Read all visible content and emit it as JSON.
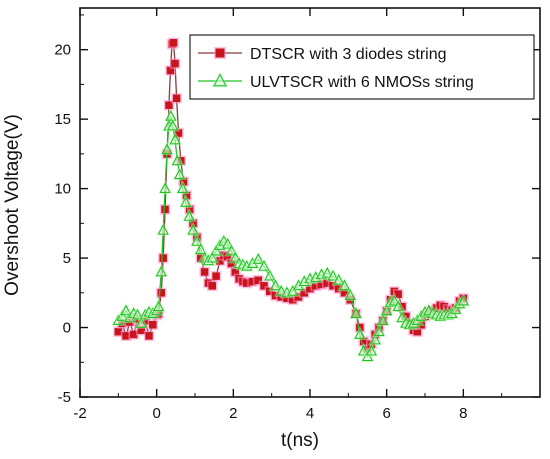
{
  "chart_data": {
    "type": "line",
    "xlabel": "t(ns)",
    "ylabel": "Overshoot Voltage(V)",
    "xlim": [
      -2,
      10
    ],
    "ylim": [
      -5,
      23
    ],
    "xticks": [
      -2,
      0,
      2,
      4,
      6,
      8
    ],
    "yticks": [
      -5,
      0,
      5,
      10,
      15,
      20
    ],
    "grid": false,
    "legend_position": "top-right",
    "series": [
      {
        "name": "DTSCR with 3 diodes string",
        "marker": "square",
        "color": "#c8151b",
        "line_color": "#8b3a3a",
        "glow_color": "#ff8fd0",
        "points": [
          [
            -1.0,
            -0.3
          ],
          [
            -0.9,
            0.3
          ],
          [
            -0.8,
            -0.6
          ],
          [
            -0.7,
            0.4
          ],
          [
            -0.6,
            -0.5
          ],
          [
            -0.5,
            0.6
          ],
          [
            -0.4,
            -0.2
          ],
          [
            -0.3,
            0.5
          ],
          [
            -0.2,
            -0.6
          ],
          [
            -0.1,
            0.2
          ],
          [
            0.0,
            0.9
          ],
          [
            0.05,
            1.0
          ],
          [
            0.12,
            2.5
          ],
          [
            0.17,
            5.0
          ],
          [
            0.22,
            8.5
          ],
          [
            0.27,
            12.5
          ],
          [
            0.32,
            16.0
          ],
          [
            0.36,
            18.5
          ],
          [
            0.4,
            20.4
          ],
          [
            0.44,
            20.5
          ],
          [
            0.48,
            19.0
          ],
          [
            0.52,
            16.5
          ],
          [
            0.57,
            14.0
          ],
          [
            0.63,
            12.0
          ],
          [
            0.7,
            10.5
          ],
          [
            0.78,
            9.5
          ],
          [
            0.86,
            8.5
          ],
          [
            0.95,
            7.5
          ],
          [
            1.05,
            6.5
          ],
          [
            1.15,
            5.0
          ],
          [
            1.25,
            4.0
          ],
          [
            1.35,
            3.2
          ],
          [
            1.45,
            3.0
          ],
          [
            1.55,
            3.7
          ],
          [
            1.65,
            4.8
          ],
          [
            1.75,
            5.2
          ],
          [
            1.85,
            5.1
          ],
          [
            1.95,
            4.6
          ],
          [
            2.05,
            4.0
          ],
          [
            2.15,
            3.5
          ],
          [
            2.25,
            3.3
          ],
          [
            2.35,
            3.2
          ],
          [
            2.5,
            3.3
          ],
          [
            2.65,
            3.4
          ],
          [
            2.8,
            3.0
          ],
          [
            2.95,
            2.6
          ],
          [
            3.1,
            2.3
          ],
          [
            3.25,
            2.2
          ],
          [
            3.4,
            2.1
          ],
          [
            3.55,
            2.0
          ],
          [
            3.7,
            2.2
          ],
          [
            3.85,
            2.5
          ],
          [
            4.0,
            2.8
          ],
          [
            4.15,
            3.0
          ],
          [
            4.3,
            3.1
          ],
          [
            4.45,
            3.2
          ],
          [
            4.6,
            3.0
          ],
          [
            4.75,
            2.8
          ],
          [
            4.9,
            2.5
          ],
          [
            5.05,
            2.0
          ],
          [
            5.2,
            1.0
          ],
          [
            5.3,
            0.0
          ],
          [
            5.4,
            -1.0
          ],
          [
            5.5,
            -1.6
          ],
          [
            5.6,
            -1.2
          ],
          [
            5.7,
            -0.5
          ],
          [
            5.8,
            0.0
          ],
          [
            5.9,
            0.5
          ],
          [
            6.0,
            1.2
          ],
          [
            6.1,
            2.0
          ],
          [
            6.2,
            2.6
          ],
          [
            6.3,
            2.4
          ],
          [
            6.4,
            1.5
          ],
          [
            6.5,
            0.8
          ],
          [
            6.6,
            0.3
          ],
          [
            6.7,
            -0.2
          ],
          [
            6.8,
            -0.3
          ],
          [
            6.9,
            0.2
          ],
          [
            7.0,
            0.8
          ],
          [
            7.1,
            1.0
          ],
          [
            7.2,
            1.2
          ],
          [
            7.3,
            1.4
          ],
          [
            7.4,
            1.6
          ],
          [
            7.5,
            1.5
          ],
          [
            7.6,
            1.3
          ],
          [
            7.7,
            1.2
          ],
          [
            7.8,
            1.4
          ],
          [
            7.9,
            1.9
          ],
          [
            8.0,
            2.1
          ]
        ]
      },
      {
        "name": "ULVTSCR with 6 NMOSs string",
        "marker": "triangle",
        "color": "#22c222",
        "line_color": "#22c222",
        "glow_color": "#c4ffc4",
        "points": [
          [
            -1.0,
            0.5
          ],
          [
            -0.9,
            0.8
          ],
          [
            -0.8,
            1.2
          ],
          [
            -0.7,
            0.7
          ],
          [
            -0.6,
            1.0
          ],
          [
            -0.5,
            0.9
          ],
          [
            -0.4,
            0.3
          ],
          [
            -0.3,
            0.9
          ],
          [
            -0.2,
            1.1
          ],
          [
            -0.1,
            1.0
          ],
          [
            0.0,
            1.2
          ],
          [
            0.05,
            1.5
          ],
          [
            0.12,
            4.0
          ],
          [
            0.17,
            7.0
          ],
          [
            0.22,
            10.0
          ],
          [
            0.27,
            12.8
          ],
          [
            0.32,
            14.5
          ],
          [
            0.37,
            15.2
          ],
          [
            0.42,
            14.5
          ],
          [
            0.48,
            13.5
          ],
          [
            0.54,
            12.0
          ],
          [
            0.6,
            11.0
          ],
          [
            0.68,
            10.0
          ],
          [
            0.76,
            9.0
          ],
          [
            0.85,
            8.0
          ],
          [
            0.95,
            7.0
          ],
          [
            1.05,
            6.2
          ],
          [
            1.15,
            5.6
          ],
          [
            1.25,
            5.0
          ],
          [
            1.35,
            4.8
          ],
          [
            1.45,
            5.0
          ],
          [
            1.55,
            5.5
          ],
          [
            1.65,
            5.9
          ],
          [
            1.75,
            6.2
          ],
          [
            1.85,
            6.0
          ],
          [
            1.95,
            5.5
          ],
          [
            2.05,
            5.0
          ],
          [
            2.15,
            4.6
          ],
          [
            2.25,
            4.5
          ],
          [
            2.35,
            4.4
          ],
          [
            2.5,
            4.6
          ],
          [
            2.65,
            4.9
          ],
          [
            2.8,
            4.4
          ],
          [
            2.95,
            3.7
          ],
          [
            3.1,
            3.0
          ],
          [
            3.25,
            2.6
          ],
          [
            3.4,
            2.5
          ],
          [
            3.55,
            2.6
          ],
          [
            3.7,
            3.0
          ],
          [
            3.85,
            3.3
          ],
          [
            4.0,
            3.5
          ],
          [
            4.15,
            3.6
          ],
          [
            4.3,
            3.8
          ],
          [
            4.45,
            3.9
          ],
          [
            4.6,
            3.7
          ],
          [
            4.75,
            3.4
          ],
          [
            4.9,
            3.0
          ],
          [
            5.05,
            2.3
          ],
          [
            5.2,
            1.0
          ],
          [
            5.3,
            -0.5
          ],
          [
            5.4,
            -1.7
          ],
          [
            5.5,
            -2.1
          ],
          [
            5.6,
            -1.7
          ],
          [
            5.7,
            -0.9
          ],
          [
            5.8,
            -0.3
          ],
          [
            5.9,
            0.5
          ],
          [
            6.0,
            1.2
          ],
          [
            6.1,
            1.8
          ],
          [
            6.2,
            1.9
          ],
          [
            6.3,
            1.5
          ],
          [
            6.4,
            0.7
          ],
          [
            6.5,
            0.3
          ],
          [
            6.6,
            0.2
          ],
          [
            6.7,
            0.3
          ],
          [
            6.8,
            0.5
          ],
          [
            6.9,
            0.8
          ],
          [
            7.0,
            1.1
          ],
          [
            7.1,
            1.2
          ],
          [
            7.2,
            1.0
          ],
          [
            7.3,
            0.9
          ],
          [
            7.4,
            0.8
          ],
          [
            7.5,
            0.9
          ],
          [
            7.6,
            0.9
          ],
          [
            7.7,
            1.0
          ],
          [
            7.8,
            1.3
          ],
          [
            7.9,
            1.7
          ],
          [
            8.0,
            1.9
          ]
        ]
      }
    ]
  }
}
